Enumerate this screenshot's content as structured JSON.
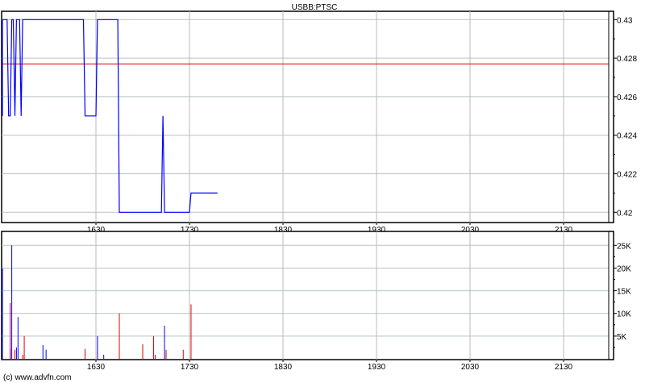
{
  "chart_data": [
    {
      "type": "line",
      "title": "USBB:PTSC",
      "x_tick_labels": [
        "1630",
        "1730",
        "1830",
        "1930",
        "2030",
        "2130"
      ],
      "y_tick_labels": [
        "0.43",
        "0.428",
        "0.426",
        "0.424",
        "0.422",
        "0.42"
      ],
      "ylim": [
        0.4196,
        0.4304
      ],
      "xlim": [
        "15:29",
        "21:59"
      ],
      "grid": true,
      "reference_line": {
        "value": 0.4277,
        "color": "#e00000"
      },
      "series": [
        {
          "color": "#0000ff",
          "points": [
            [
              "15:30",
              0.425
            ],
            [
              "15:30",
              0.43
            ],
            [
              "15:33",
              0.43
            ],
            [
              "15:34",
              0.425
            ],
            [
              "15:35",
              0.425
            ],
            [
              "15:36",
              0.43
            ],
            [
              "15:37",
              0.43
            ],
            [
              "15:38",
              0.425
            ],
            [
              "15:39",
              0.43
            ],
            [
              "15:41",
              0.43
            ],
            [
              "15:42",
              0.425
            ],
            [
              "15:43",
              0.43
            ],
            [
              "16:22",
              0.43
            ],
            [
              "16:23",
              0.425
            ],
            [
              "16:30",
              0.425
            ],
            [
              "16:31",
              0.43
            ],
            [
              "16:44",
              0.43
            ],
            [
              "16:45",
              0.42
            ],
            [
              "17:12",
              0.42
            ],
            [
              "17:13",
              0.425
            ],
            [
              "17:14",
              0.42
            ],
            [
              "17:30",
              0.42
            ],
            [
              "17:31",
              0.421
            ],
            [
              "17:48",
              0.421
            ]
          ]
        }
      ]
    },
    {
      "type": "bar",
      "x_tick_labels": [
        "1630",
        "1730",
        "1830",
        "1930",
        "2030",
        "2130"
      ],
      "y_tick_labels": [
        "25K",
        "20K",
        "15K",
        "10K",
        "5K"
      ],
      "ylim": [
        0,
        27000
      ],
      "grid": true,
      "colors": {
        "up": "#0000ff",
        "down": "#e00000"
      },
      "bars": [
        {
          "time": "15:30",
          "volume": 20000,
          "dir": "up"
        },
        {
          "time": "15:35",
          "volume": 2200,
          "dir": "down"
        },
        {
          "time": "15:35",
          "volume": 12300,
          "dir": "down"
        },
        {
          "time": "15:36",
          "volume": 25000,
          "dir": "up"
        },
        {
          "time": "15:38",
          "volume": 2000,
          "dir": "down"
        },
        {
          "time": "15:39",
          "volume": 2500,
          "dir": "up"
        },
        {
          "time": "15:40",
          "volume": 9200,
          "dir": "up"
        },
        {
          "time": "15:43",
          "volume": 900,
          "dir": "down"
        },
        {
          "time": "15:44",
          "volume": 5000,
          "dir": "down"
        },
        {
          "time": "15:56",
          "volume": 3000,
          "dir": "up"
        },
        {
          "time": "15:58",
          "volume": 2000,
          "dir": "up"
        },
        {
          "time": "16:23",
          "volume": 2200,
          "dir": "down"
        },
        {
          "time": "16:31",
          "volume": 5000,
          "dir": "up"
        },
        {
          "time": "16:35",
          "volume": 900,
          "dir": "up"
        },
        {
          "time": "16:45",
          "volume": 10000,
          "dir": "down"
        },
        {
          "time": "17:00",
          "volume": 3200,
          "dir": "down"
        },
        {
          "time": "17:07",
          "volume": 5000,
          "dir": "down"
        },
        {
          "time": "17:08",
          "volume": 900,
          "dir": "down"
        },
        {
          "time": "17:14",
          "volume": 7300,
          "dir": "up"
        },
        {
          "time": "17:15",
          "volume": 2000,
          "dir": "down"
        },
        {
          "time": "17:26",
          "volume": 2000,
          "dir": "down"
        },
        {
          "time": "17:31",
          "volume": 12000,
          "dir": "down"
        }
      ]
    }
  ],
  "footer": "(c) www.advfn.com"
}
